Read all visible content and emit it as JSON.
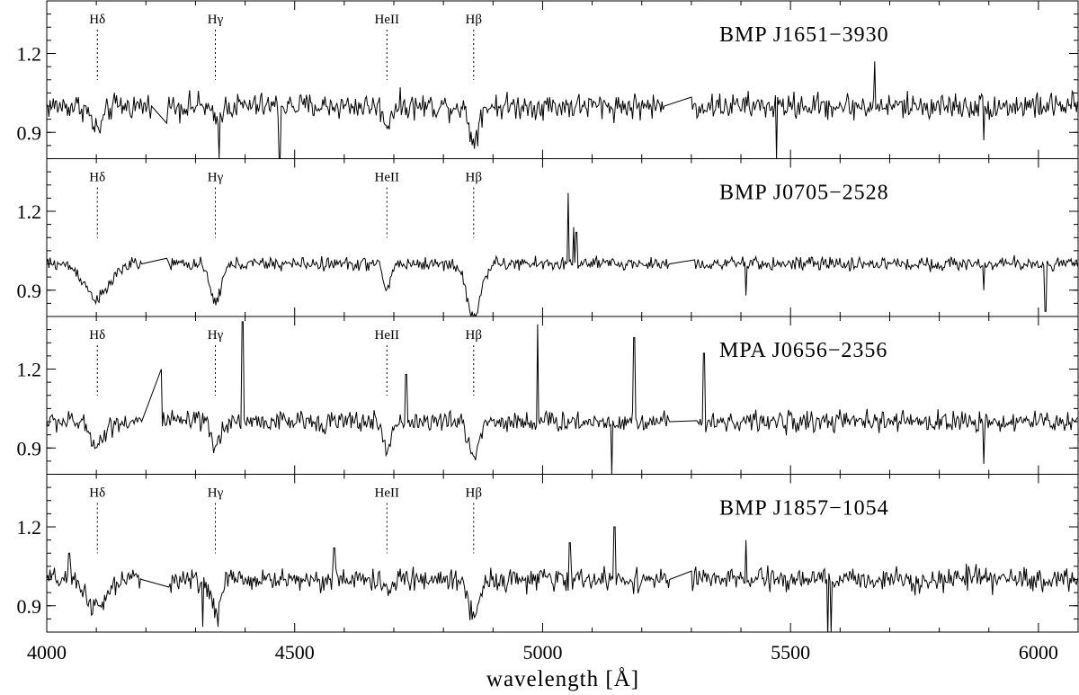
{
  "chart_data": {
    "type": "line",
    "xlabel": "wavelength [Å]",
    "xlim": [
      4000,
      6080
    ],
    "x_ticks": [
      4000,
      4500,
      5000,
      5500,
      6000
    ],
    "ylim": [
      0.8,
      1.4
    ],
    "y_ticks": [
      0.9,
      1.2
    ],
    "line_markers": [
      {
        "label": "Hδ",
        "wavelength": 4102
      },
      {
        "label": "Hγ",
        "wavelength": 4340
      },
      {
        "label": "HeII",
        "wavelength": 4686
      },
      {
        "label": "Hβ",
        "wavelength": 4861
      }
    ],
    "panels": [
      {
        "name": "BMP J1651−3930",
        "noise": 0.035,
        "gaps": [
          [
            4210,
            4240
          ],
          [
            5245,
            5300
          ]
        ],
        "absorptions": [
          {
            "x": 4102,
            "depth": 0.09,
            "width": 12
          },
          {
            "x": 4340,
            "depth": 0.06,
            "width": 8
          },
          {
            "x": 4686,
            "depth": 0.07,
            "width": 7
          },
          {
            "x": 4861,
            "depth": 0.13,
            "width": 9
          }
        ],
        "spikes": [
          {
            "x": 4347,
            "value": 0.8
          },
          {
            "x": 4470,
            "value": 0.8
          },
          {
            "x": 5472,
            "value": 0.8
          },
          {
            "x": 5670,
            "value": 1.17
          },
          {
            "x": 5890,
            "value": 0.87
          }
        ]
      },
      {
        "name": "BMP J0705−2528",
        "noise": 0.018,
        "gaps": [
          [
            4190,
            4240
          ],
          [
            5255,
            5305
          ]
        ],
        "absorptions": [
          {
            "x": 4102,
            "depth": 0.13,
            "width": 25
          },
          {
            "x": 4340,
            "depth": 0.14,
            "width": 12
          },
          {
            "x": 4686,
            "depth": 0.1,
            "width": 7
          },
          {
            "x": 4861,
            "depth": 0.2,
            "width": 14
          }
        ],
        "spikes": [
          {
            "x": 5052,
            "value": 1.27
          },
          {
            "x": 5062,
            "value": 1.14
          },
          {
            "x": 5068,
            "value": 1.12
          },
          {
            "x": 5410,
            "value": 0.88
          },
          {
            "x": 5890,
            "value": 0.9
          },
          {
            "x": 6014,
            "value": 0.82
          }
        ]
      },
      {
        "name": "MPA J0656−2356",
        "noise": 0.028,
        "gaps": [
          [
            4190,
            4230
          ],
          [
            5255,
            5310
          ]
        ],
        "absorptions": [
          {
            "x": 4102,
            "depth": 0.08,
            "width": 15
          },
          {
            "x": 4340,
            "depth": 0.1,
            "width": 9
          },
          {
            "x": 4686,
            "depth": 0.12,
            "width": 7
          },
          {
            "x": 4861,
            "depth": 0.13,
            "width": 10
          }
        ],
        "spikes": [
          {
            "x": 4230,
            "value": 1.2
          },
          {
            "x": 4395,
            "value": 1.38
          },
          {
            "x": 4725,
            "value": 1.18
          },
          {
            "x": 4990,
            "value": 1.37
          },
          {
            "x": 5140,
            "value": 0.8
          },
          {
            "x": 5185,
            "value": 1.32
          },
          {
            "x": 5325,
            "value": 1.26
          },
          {
            "x": 5890,
            "value": 0.84
          }
        ]
      },
      {
        "name": "BMP J1857−1054",
        "noise": 0.03,
        "gaps": [
          [
            4190,
            4245
          ],
          [
            5255,
            5300
          ]
        ],
        "absorptions": [
          {
            "x": 4102,
            "depth": 0.11,
            "width": 20
          },
          {
            "x": 4340,
            "depth": 0.12,
            "width": 10
          },
          {
            "x": 4686,
            "depth": 0.06,
            "width": 7
          },
          {
            "x": 4861,
            "depth": 0.14,
            "width": 10
          }
        ],
        "spikes": [
          {
            "x": 4045,
            "value": 1.1
          },
          {
            "x": 4315,
            "value": 0.82
          },
          {
            "x": 4345,
            "value": 0.82
          },
          {
            "x": 4580,
            "value": 1.12
          },
          {
            "x": 5055,
            "value": 1.14
          },
          {
            "x": 5145,
            "value": 1.2
          },
          {
            "x": 5410,
            "value": 1.15
          },
          {
            "x": 5575,
            "value": 0.78
          },
          {
            "x": 5582,
            "value": 0.8
          },
          {
            "x": 5855,
            "value": 1.06
          }
        ]
      }
    ]
  }
}
